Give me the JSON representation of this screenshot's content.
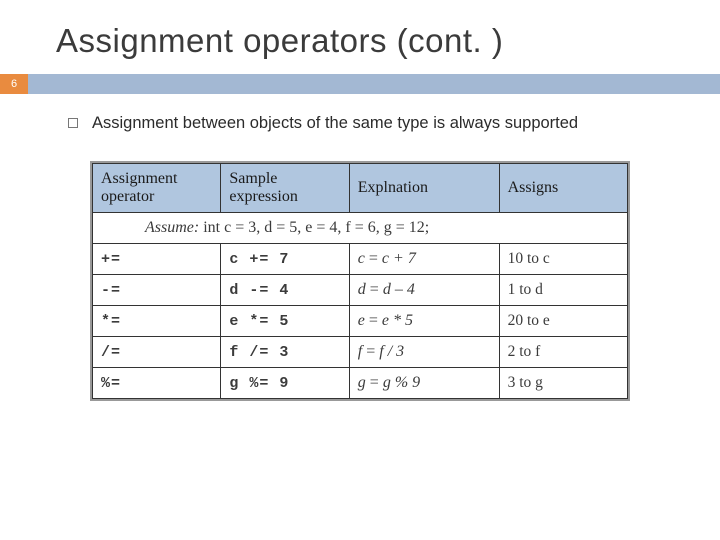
{
  "slide": {
    "title": "Assignment operators (cont. )",
    "page_number": "6",
    "accent_color": "#e98b3f",
    "bar_color": "#a3b8d3",
    "bullet_text": "Assignment between objects of the same type is always supported"
  },
  "table": {
    "header_bg": "#b0c6df",
    "columns": [
      "Assignment operator",
      "Sample expression",
      "Explnation",
      "Assigns"
    ],
    "assume_prefix": "Assume:",
    "assume_body": " int c = 3, d = 5, e = 4, f = 6, g = 12;",
    "rows": [
      {
        "op": "+=",
        "sample": "c += 7",
        "expl_lhs": "c",
        "expl_op": " = ",
        "expl_rhs": "c + 7",
        "assigns": "10 to c"
      },
      {
        "op": "-=",
        "sample": "d -= 4",
        "expl_lhs": "d",
        "expl_op": " = ",
        "expl_rhs": "d – 4",
        "assigns": "1 to d"
      },
      {
        "op": "*=",
        "sample": "e *= 5",
        "expl_lhs": "e",
        "expl_op": " = ",
        "expl_rhs": "e * 5",
        "assigns": "20 to e"
      },
      {
        "op": "/=",
        "sample": "f /= 3",
        "expl_lhs": "f",
        "expl_op": " = ",
        "expl_rhs": "f  / 3",
        "assigns": "2 to f"
      },
      {
        "op": "%=",
        "sample": "g %= 9",
        "expl_lhs": "g",
        "expl_op": " = ",
        "expl_rhs": "g % 9",
        "assigns": "3 to g"
      }
    ]
  }
}
